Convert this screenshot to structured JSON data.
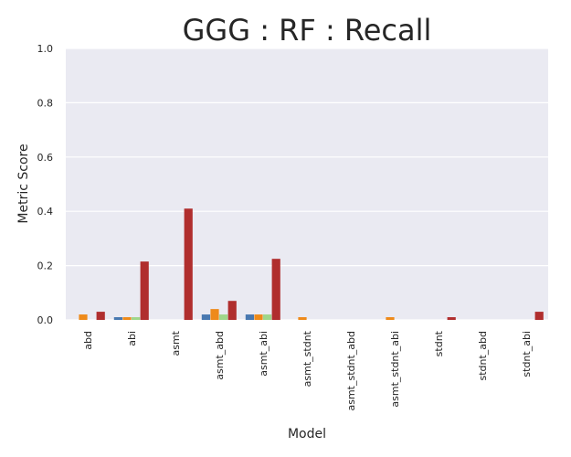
{
  "chart_data": {
    "type": "bar",
    "title": "GGG : RF : Recall",
    "xlabel": "Model",
    "ylabel": "Metric Score",
    "ylim": [
      0,
      1
    ],
    "yticks": [
      0.0,
      0.2,
      0.4,
      0.6,
      0.8,
      1.0
    ],
    "ytick_labels": [
      "0.0",
      "0.2",
      "0.4",
      "0.6",
      "0.8",
      "1.0"
    ],
    "grid": true,
    "categories": [
      "abd",
      "abi",
      "asmt",
      "asmt_abd",
      "asmt_abi",
      "asmt_stdnt",
      "asmt_stdnt_abd",
      "asmt_stdnt_abi",
      "stdnt",
      "stdnt_abd",
      "stdnt_abi"
    ],
    "series": [
      {
        "color": "#4878b0",
        "values": [
          0.0,
          0.01,
          0.0,
          0.02,
          0.02,
          0.0,
          0.0,
          0.0,
          0.0,
          0.0,
          0.0
        ]
      },
      {
        "color": "#ee8a1a",
        "values": [
          0.02,
          0.01,
          0.0,
          0.04,
          0.02,
          0.01,
          0.0,
          0.01,
          0.0,
          0.0,
          0.0
        ]
      },
      {
        "color": "#9fd68a",
        "values": [
          0.0,
          0.01,
          0.0,
          0.02,
          0.02,
          0.0,
          0.0,
          0.0,
          0.0,
          0.0,
          0.0
        ]
      },
      {
        "color": "#b02e2e",
        "values": [
          0.03,
          0.215,
          0.41,
          0.07,
          0.225,
          0.0,
          0.0,
          0.0,
          0.01,
          0.0,
          0.03
        ]
      }
    ]
  }
}
